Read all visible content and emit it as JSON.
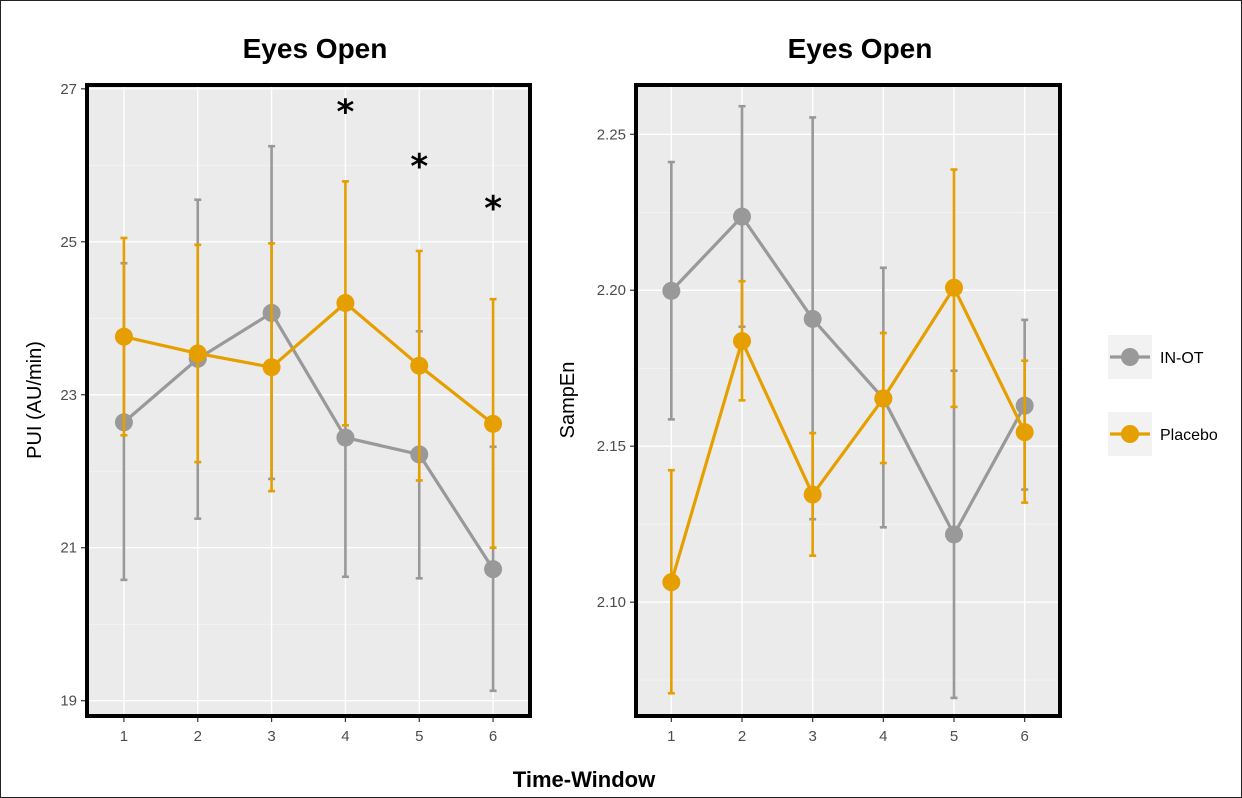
{
  "colors": {
    "IN-OT": "#999999",
    "Placebo": "#E69F00"
  },
  "x_axis_title": "Time-Window",
  "legend": [
    {
      "label": "IN-OT",
      "color": "#999999"
    },
    {
      "label": "Placebo",
      "color": "#E69F00"
    }
  ],
  "chart_data": [
    {
      "type": "line",
      "title": "Eyes Open",
      "xlabel": "Time-Window",
      "ylabel": "PUI (AU/min)",
      "x": [
        1,
        2,
        3,
        4,
        5,
        6
      ],
      "ylim": [
        18.8,
        27.05
      ],
      "yticks": [
        19,
        21,
        23,
        25,
        27
      ],
      "grid": true,
      "error_bars": true,
      "series": [
        {
          "name": "IN-OT",
          "values": [
            22.64,
            23.47,
            24.07,
            22.44,
            22.22,
            20.72
          ],
          "lower": [
            20.58,
            21.38,
            21.9,
            20.62,
            20.6,
            19.13
          ],
          "upper": [
            24.72,
            25.55,
            26.25,
            24.25,
            23.83,
            22.32
          ]
        },
        {
          "name": "Placebo",
          "values": [
            23.76,
            23.54,
            23.36,
            24.2,
            23.38,
            22.62
          ],
          "lower": [
            22.47,
            22.12,
            21.74,
            22.6,
            21.88,
            21.0
          ],
          "upper": [
            25.05,
            24.96,
            24.98,
            25.79,
            24.88,
            24.25
          ]
        }
      ],
      "annotations": [
        {
          "x": 4,
          "y": 26.78,
          "text": "*"
        },
        {
          "x": 5,
          "y": 26.07,
          "text": "*"
        },
        {
          "x": 6,
          "y": 25.52,
          "text": "*"
        }
      ]
    },
    {
      "type": "line",
      "title": "Eyes Open",
      "xlabel": "Time-Window",
      "ylabel": "SampEn",
      "x": [
        1,
        2,
        3,
        4,
        5,
        6
      ],
      "ylim": [
        2.0635,
        2.2658
      ],
      "yticks": [
        2.1,
        2.15,
        2.2,
        2.25
      ],
      "ytick_labels": [
        "2.10",
        "2.15",
        "2.20",
        "2.25"
      ],
      "grid": true,
      "error_bars": true,
      "series": [
        {
          "name": "IN-OT",
          "values": [
            2.1998,
            2.2236,
            2.1908,
            2.1653,
            2.1217,
            2.163
          ],
          "lower": [
            2.1586,
            2.1883,
            2.1266,
            2.124,
            2.0693,
            2.1361
          ],
          "upper": [
            2.2411,
            2.259,
            2.2554,
            2.2072,
            2.1742,
            2.1905
          ]
        },
        {
          "name": "Placebo",
          "values": [
            2.1064,
            2.1837,
            2.1345,
            2.1653,
            2.2008,
            2.1545
          ],
          "lower": [
            2.0708,
            2.1647,
            2.1149,
            2.1446,
            2.1626,
            2.1319
          ],
          "upper": [
            2.1423,
            2.2029,
            2.1542,
            2.1863,
            2.2387,
            2.1774
          ]
        }
      ]
    }
  ]
}
